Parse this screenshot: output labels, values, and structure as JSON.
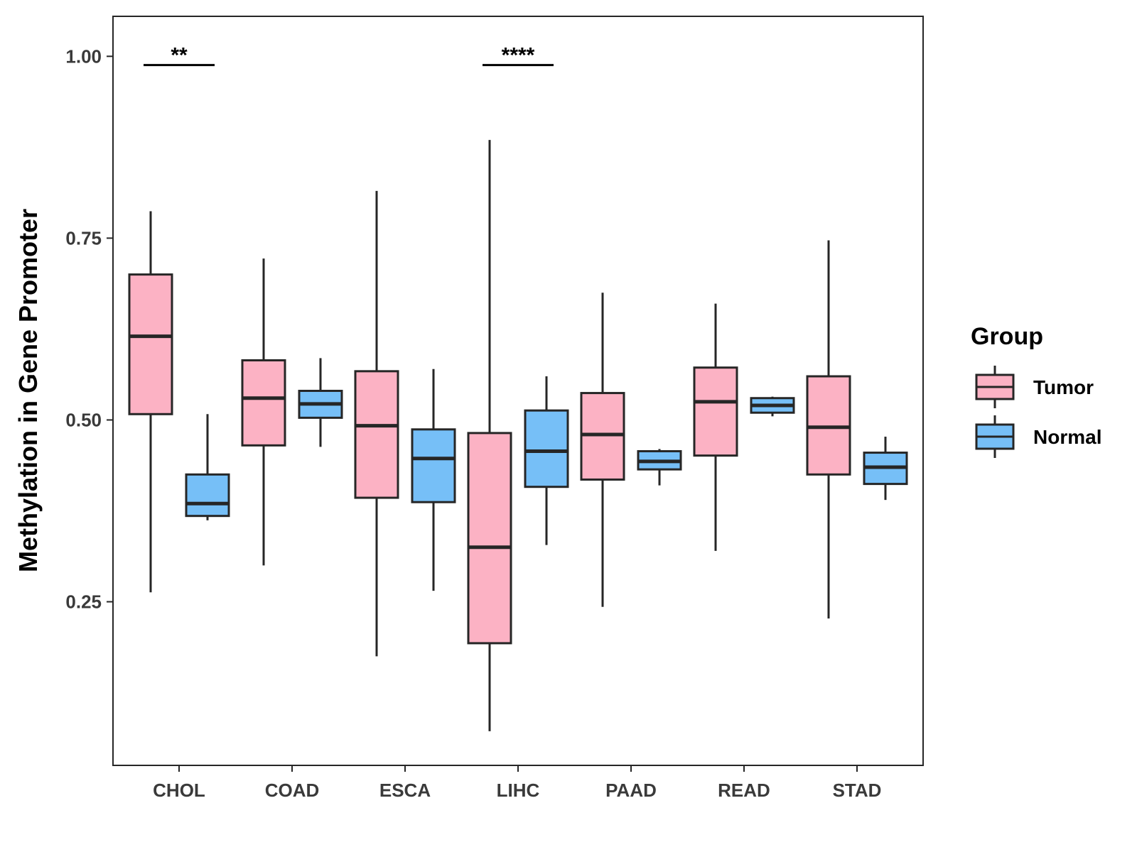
{
  "chart_data": {
    "type": "boxplot",
    "title": "",
    "xlabel": "",
    "ylabel": "Methylation in Gene Promoter",
    "ylim": [
      0.025,
      1.055
    ],
    "yticks": [
      0.25,
      0.5,
      0.75,
      1.0
    ],
    "ytick_labels": [
      "0.25",
      "0.50",
      "0.75",
      "1.00"
    ],
    "categories": [
      "CHOL",
      "COAD",
      "ESCA",
      "LIHC",
      "PAAD",
      "READ",
      "STAD"
    ],
    "legend": {
      "title": "Group",
      "position": "right",
      "entries": [
        "Tumor",
        "Normal"
      ]
    },
    "colors": {
      "Tumor": "#FCB2C4",
      "Normal": "#76BFF7",
      "outline": "#262626"
    },
    "series": [
      {
        "name": "Tumor",
        "boxes": [
          {
            "category": "CHOL",
            "lower_whisker": 0.263,
            "q1": 0.508,
            "median": 0.615,
            "q3": 0.7,
            "upper_whisker": 0.787
          },
          {
            "category": "COAD",
            "lower_whisker": 0.3,
            "q1": 0.465,
            "median": 0.53,
            "q3": 0.582,
            "upper_whisker": 0.722
          },
          {
            "category": "ESCA",
            "lower_whisker": 0.175,
            "q1": 0.393,
            "median": 0.492,
            "q3": 0.567,
            "upper_whisker": 0.815
          },
          {
            "category": "LIHC",
            "lower_whisker": 0.072,
            "q1": 0.193,
            "median": 0.325,
            "q3": 0.482,
            "upper_whisker": 0.885
          },
          {
            "category": "PAAD",
            "lower_whisker": 0.243,
            "q1": 0.418,
            "median": 0.48,
            "q3": 0.537,
            "upper_whisker": 0.675
          },
          {
            "category": "READ",
            "lower_whisker": 0.32,
            "q1": 0.451,
            "median": 0.525,
            "q3": 0.572,
            "upper_whisker": 0.66
          },
          {
            "category": "STAD",
            "lower_whisker": 0.227,
            "q1": 0.425,
            "median": 0.49,
            "q3": 0.56,
            "upper_whisker": 0.747
          }
        ]
      },
      {
        "name": "Normal",
        "boxes": [
          {
            "category": "CHOL",
            "lower_whisker": 0.362,
            "q1": 0.368,
            "median": 0.385,
            "q3": 0.425,
            "upper_whisker": 0.508
          },
          {
            "category": "COAD",
            "lower_whisker": 0.463,
            "q1": 0.503,
            "median": 0.522,
            "q3": 0.54,
            "upper_whisker": 0.585
          },
          {
            "category": "ESCA",
            "lower_whisker": 0.265,
            "q1": 0.387,
            "median": 0.447,
            "q3": 0.487,
            "upper_whisker": 0.57
          },
          {
            "category": "LIHC",
            "lower_whisker": 0.328,
            "q1": 0.408,
            "median": 0.457,
            "q3": 0.513,
            "upper_whisker": 0.56
          },
          {
            "category": "PAAD",
            "lower_whisker": 0.41,
            "q1": 0.432,
            "median": 0.443,
            "q3": 0.457,
            "upper_whisker": 0.46
          },
          {
            "category": "READ",
            "lower_whisker": 0.505,
            "q1": 0.51,
            "median": 0.52,
            "q3": 0.53,
            "upper_whisker": 0.532
          },
          {
            "category": "STAD",
            "lower_whisker": 0.39,
            "q1": 0.412,
            "median": 0.435,
            "q3": 0.455,
            "upper_whisker": 0.477
          }
        ]
      }
    ],
    "annotations": [
      {
        "category": "CHOL",
        "label": "**",
        "y": 0.988
      },
      {
        "category": "LIHC",
        "label": "****",
        "y": 0.988
      }
    ]
  }
}
